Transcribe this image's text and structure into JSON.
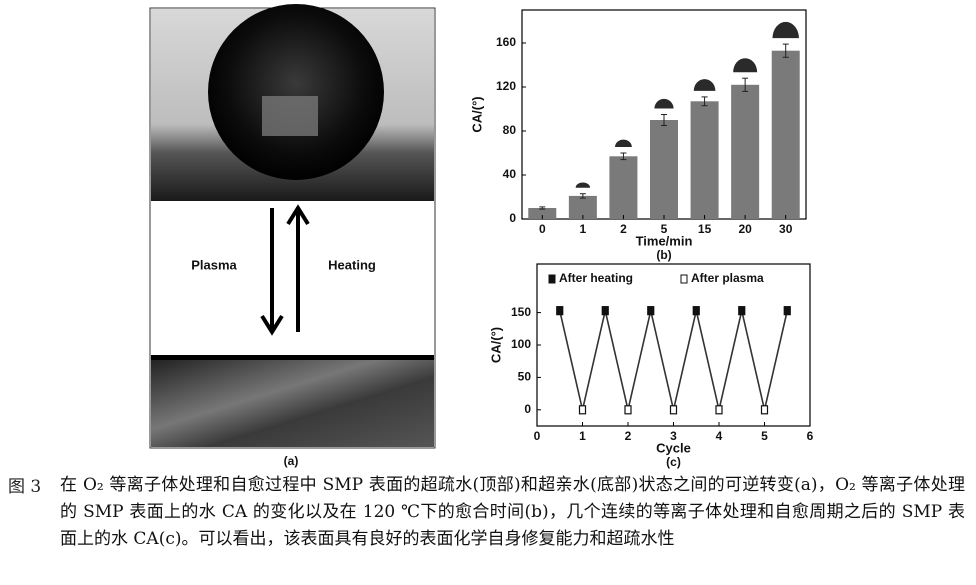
{
  "figure": {
    "panel_a": {
      "plasma": "Plasma",
      "heating": "Heating",
      "label": "(a)"
    },
    "caption_label": "图 3",
    "caption": "在 O₂ 等离子体处理和自愈过程中 SMP 表面的超疏水(顶部)和超亲水(底部)状态之间的可逆转变(a)，O₂ 等离子体处理的 SMP 表面上的水 CA 的变化以及在 120 ℃下的愈合时间(b)，几个连续的等离子体处理和自愈周期之后的 SMP 表面上的水 CA(c)。可以看出，该表面具有良好的表面化学自身修复能力和超疏水性"
  },
  "chart_data": [
    {
      "type": "bar",
      "label": "(b)",
      "x_label": "Time/min",
      "y_label": "CA/(°)",
      "categories": [
        "0",
        "1",
        "2",
        "5",
        "15",
        "20",
        "30"
      ],
      "values": [
        10,
        21,
        57,
        90,
        107,
        122,
        153
      ],
      "errors": [
        1,
        2,
        3,
        5,
        4,
        6,
        6
      ],
      "color": "#7a7a7a",
      "ylim": [
        0,
        190
      ],
      "yticks": [
        0,
        40,
        80,
        120,
        160
      ]
    },
    {
      "type": "line",
      "label": "(c)",
      "x_label": "Cycle",
      "y_label": "CA/(°)",
      "xlim": [
        0,
        6
      ],
      "xticks": [
        0,
        1,
        2,
        3,
        4,
        5,
        6
      ],
      "ylim": [
        -25,
        225
      ],
      "yticks": [
        0,
        50,
        100,
        150
      ],
      "legend": "top-left",
      "series": [
        {
          "name": "After heating",
          "color": "#111111",
          "x": [
            0.5,
            1.5,
            2.5,
            3.5,
            4.5,
            5.5
          ],
          "values": [
            153,
            153,
            153,
            153,
            153,
            153
          ]
        },
        {
          "name": "After plasma",
          "color": "#111111",
          "x": [
            1,
            2,
            3,
            4,
            5
          ],
          "values": [
            0,
            0,
            0,
            0,
            0
          ]
        }
      ]
    }
  ]
}
